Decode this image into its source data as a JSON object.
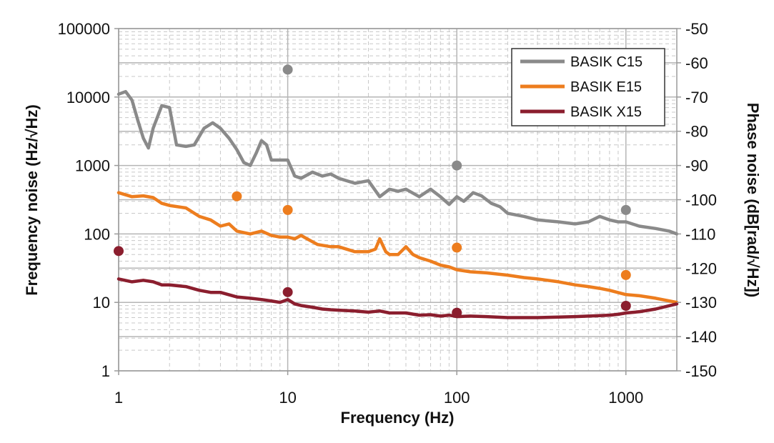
{
  "chart_data": {
    "type": "line",
    "xlabel": "Frequency (Hz)",
    "ylabel_left": "Frequency noise (Hz/√Hz)",
    "ylabel_right": "Phase noise (dB[rad/√Hz])",
    "x_scale": "log",
    "y_scale_left": "log",
    "xlim": [
      1,
      2000
    ],
    "ylim_left": [
      1,
      100000
    ],
    "ylim_right": [
      -150,
      -50
    ],
    "x_ticks": [
      "1",
      "10",
      "100",
      "1000"
    ],
    "y_ticks_left": [
      "100000",
      "10000",
      "1000",
      "100",
      "10",
      "1"
    ],
    "y_ticks_right": [
      "-50",
      "-60",
      "-70",
      "-80",
      "-90",
      "-100",
      "-110",
      "-120",
      "-130",
      "-140",
      "-150"
    ],
    "grid": true,
    "legend_position": "top-right",
    "series": [
      {
        "name": "BASIK C15",
        "color": "#8a8a8a",
        "x": [
          1,
          1.1,
          1.2,
          1.3,
          1.4,
          1.5,
          1.6,
          1.8,
          2,
          2.2,
          2.5,
          2.8,
          3.2,
          3.6,
          4,
          4.5,
          5,
          5.5,
          6,
          6.5,
          7,
          7.5,
          8,
          9,
          10,
          11,
          12,
          14,
          16,
          18,
          20,
          25,
          30,
          35,
          40,
          45,
          50,
          60,
          70,
          80,
          90,
          100,
          110,
          125,
          140,
          160,
          180,
          200,
          250,
          300,
          400,
          500,
          600,
          700,
          800,
          900,
          1000,
          1200,
          1500,
          1800,
          2000
        ],
        "values": [
          11000,
          12000,
          9000,
          4500,
          2500,
          1800,
          3500,
          7500,
          7000,
          2000,
          1900,
          2000,
          3500,
          4200,
          3500,
          2500,
          1700,
          1100,
          1000,
          1500,
          2300,
          2000,
          1200,
          1200,
          1200,
          700,
          650,
          800,
          700,
          750,
          650,
          550,
          600,
          350,
          450,
          420,
          450,
          350,
          450,
          350,
          270,
          350,
          300,
          400,
          360,
          280,
          250,
          200,
          180,
          160,
          150,
          140,
          150,
          180,
          160,
          150,
          150,
          130,
          120,
          110,
          100
        ]
      },
      {
        "name": "BASIK E15",
        "color": "#ed7d1e",
        "x": [
          1,
          1.2,
          1.4,
          1.6,
          1.8,
          2,
          2.5,
          3,
          3.5,
          4,
          4.5,
          5,
          6,
          7,
          8,
          9,
          10,
          11,
          12,
          13,
          15,
          18,
          20,
          25,
          30,
          33,
          35,
          38,
          40,
          45,
          50,
          55,
          60,
          70,
          80,
          90,
          100,
          120,
          150,
          200,
          250,
          300,
          400,
          500,
          600,
          700,
          800,
          1000,
          1200,
          1500,
          2000
        ],
        "values": [
          400,
          350,
          360,
          340,
          280,
          260,
          240,
          180,
          160,
          130,
          140,
          110,
          100,
          110,
          95,
          90,
          90,
          85,
          95,
          85,
          70,
          65,
          65,
          55,
          55,
          60,
          85,
          55,
          50,
          50,
          65,
          50,
          45,
          40,
          35,
          33,
          30,
          28,
          27,
          25,
          23,
          22,
          20,
          18,
          17,
          16,
          15,
          13,
          12.5,
          11.5,
          10
        ]
      },
      {
        "name": "BASIK X15",
        "color": "#8b1e2e",
        "x": [
          1,
          1.2,
          1.4,
          1.6,
          1.8,
          2,
          2.5,
          3,
          3.5,
          4,
          5,
          6,
          7,
          8,
          9,
          10,
          11,
          12,
          14,
          16,
          18,
          20,
          25,
          30,
          35,
          40,
          50,
          60,
          70,
          80,
          90,
          100,
          120,
          150,
          200,
          300,
          400,
          500,
          600,
          700,
          800,
          900,
          1000,
          1200,
          1500,
          2000
        ],
        "values": [
          22,
          20,
          21,
          20,
          18,
          18,
          17,
          15,
          14,
          14,
          12,
          11.5,
          11,
          10.5,
          10,
          11,
          9.5,
          9,
          8.5,
          8,
          7.8,
          7.7,
          7.5,
          7.2,
          7.5,
          7,
          7,
          6.5,
          6.6,
          6.3,
          6.5,
          6.2,
          6.3,
          6.2,
          6,
          6,
          6.1,
          6.2,
          6.3,
          6.4,
          6.5,
          6.7,
          7,
          7.3,
          8,
          9.5
        ]
      }
    ],
    "phase_points": [
      {
        "series": "BASIK C15",
        "color": "#8a8a8a",
        "x": [
          10,
          100,
          1000
        ],
        "values": [
          -62,
          -90,
          -103
        ]
      },
      {
        "series": "BASIK E15",
        "color": "#ed7d1e",
        "x": [
          5,
          10,
          100,
          1000
        ],
        "values": [
          -99,
          -103,
          -114,
          -122
        ]
      },
      {
        "series": "BASIK X15",
        "color": "#8b1e2e",
        "x": [
          1,
          10,
          100,
          1000
        ],
        "values": [
          -115,
          -127,
          -133,
          -131
        ]
      }
    ]
  }
}
